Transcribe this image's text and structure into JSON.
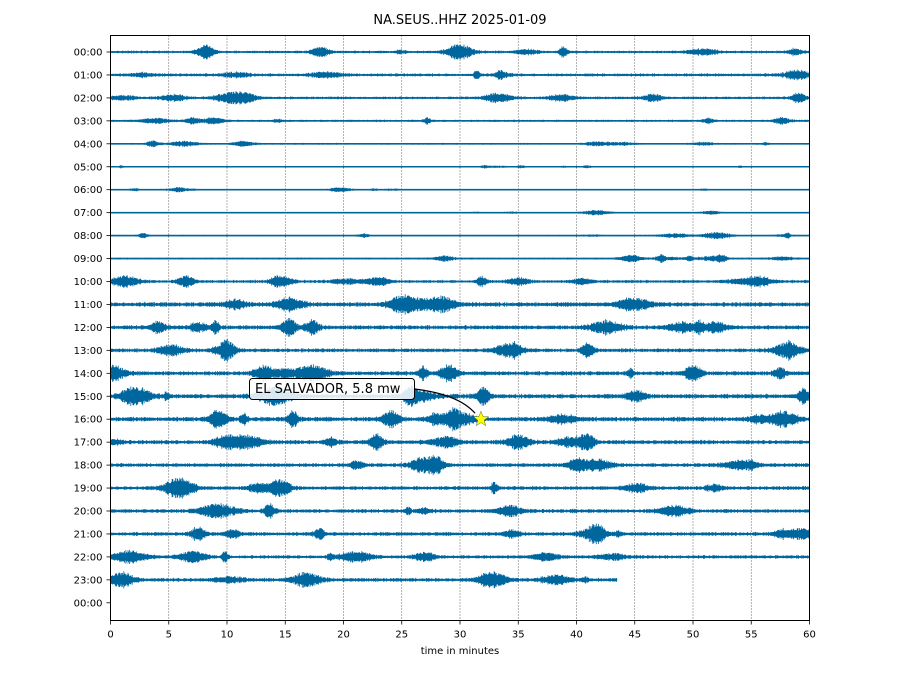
{
  "chart_data": {
    "type": "line",
    "title": "NA.SEUS..HHZ 2025-01-09",
    "xlabel": "time in minutes",
    "ylabel": "",
    "xlim": [
      0,
      60
    ],
    "x_ticks": [
      "0",
      "5",
      "10",
      "15",
      "20",
      "25",
      "30",
      "35",
      "40",
      "45",
      "50",
      "55",
      "60"
    ],
    "y_tick_labels": [
      "00:00",
      "01:00",
      "02:00",
      "03:00",
      "04:00",
      "05:00",
      "06:00",
      "07:00",
      "08:00",
      "09:00",
      "10:00",
      "11:00",
      "12:00",
      "13:00",
      "14:00",
      "15:00",
      "16:00",
      "17:00",
      "18:00",
      "19:00",
      "20:00",
      "21:00",
      "22:00",
      "23:00",
      "00:00"
    ],
    "trace_amplitude": [
      0.35,
      0.4,
      0.35,
      0.3,
      0.22,
      0.12,
      0.15,
      0.1,
      0.18,
      0.25,
      0.4,
      0.6,
      0.55,
      0.5,
      0.55,
      0.6,
      0.6,
      0.55,
      0.5,
      0.5,
      0.5,
      0.5,
      0.45,
      0.5
    ],
    "trace_end_minutes": [
      60,
      60,
      60,
      60,
      60,
      60,
      60,
      60,
      60,
      60,
      60,
      60,
      60,
      60,
      60,
      60,
      60,
      60,
      60,
      60,
      60,
      60,
      60,
      43.5
    ],
    "grid": "vertical-dotted",
    "trace_color": "#00669e",
    "annotation": {
      "text": "EL SALVADOR, 5.8 mw",
      "hour_row": 16,
      "minute": 31.8,
      "marker": "star",
      "marker_color": "#ffff00"
    }
  }
}
